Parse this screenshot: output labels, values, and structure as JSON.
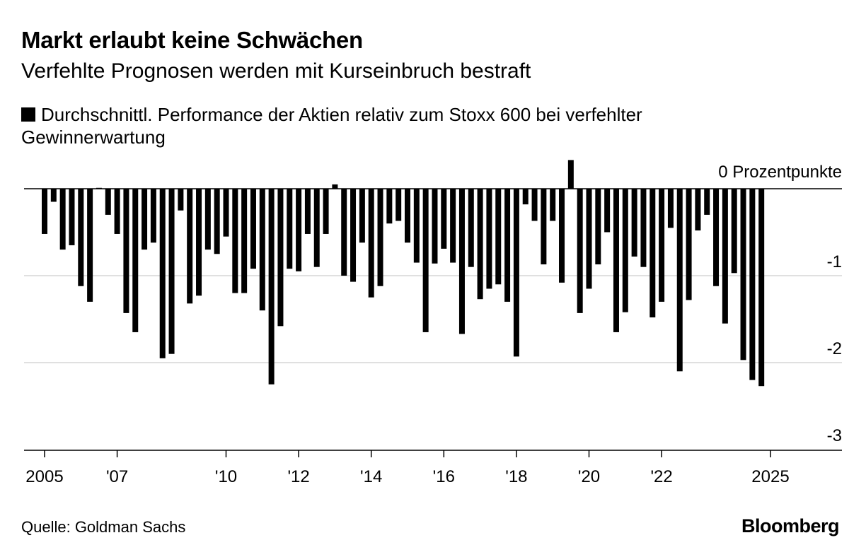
{
  "chart_data": {
    "type": "bar",
    "title": "Markt erlaubt keine Schwächen",
    "subtitle": "Verfehlte Prognosen werden mit Kurseinbruch bestraft",
    "legend": [
      {
        "label": "Durchschnittl. Performance der Aktien relativ zum Stoxx 600 bei verfehlter Gewinnerwartung",
        "color": "#000000"
      }
    ],
    "y_unit_label": "0 Prozentpunkte",
    "ylim": [
      -3,
      0.3
    ],
    "yticks": [
      {
        "value": 0,
        "label": ""
      },
      {
        "value": -1,
        "label": "-1"
      },
      {
        "value": -2,
        "label": "-2"
      },
      {
        "value": -3,
        "label": "-3"
      }
    ],
    "xlim": [
      2005,
      2026
    ],
    "xticks": [
      {
        "value": 2005,
        "label": "2005"
      },
      {
        "value": 2007,
        "label": "'07"
      },
      {
        "value": 2010,
        "label": "'10"
      },
      {
        "value": 2012,
        "label": "'12"
      },
      {
        "value": 2014,
        "label": "'14"
      },
      {
        "value": 2016,
        "label": "'16"
      },
      {
        "value": 2018,
        "label": "'18"
      },
      {
        "value": 2020,
        "label": "'20"
      },
      {
        "value": 2022,
        "label": "'22"
      },
      {
        "value": 2025,
        "label": "2025"
      }
    ],
    "x_start": 2005.0,
    "x_step": 0.25,
    "values": [
      -0.52,
      -0.15,
      -0.7,
      -0.65,
      -1.12,
      -1.3,
      0.01,
      -0.3,
      -0.52,
      -1.43,
      -1.65,
      -0.7,
      -0.62,
      -1.95,
      -1.9,
      -0.25,
      -1.32,
      -1.23,
      -0.7,
      -0.75,
      -0.55,
      -1.2,
      -1.2,
      -0.92,
      -1.4,
      -2.25,
      -1.58,
      -0.92,
      -0.95,
      -0.52,
      -0.9,
      -0.52,
      0.05,
      -1.0,
      -1.07,
      -0.62,
      -1.25,
      -1.12,
      -0.4,
      -0.37,
      -0.62,
      -0.85,
      -1.65,
      -0.86,
      -0.69,
      -0.85,
      -1.67,
      -0.9,
      -1.27,
      -1.15,
      -1.1,
      -1.3,
      -1.93,
      -0.18,
      -0.37,
      -0.87,
      -0.37,
      -1.08,
      0.33,
      -1.43,
      -1.15,
      -0.87,
      -0.5,
      -1.65,
      -1.42,
      -0.78,
      -0.9,
      -1.48,
      -1.3,
      -0.45,
      -2.1,
      -1.28,
      -0.48,
      -0.3,
      -1.12,
      -1.55,
      -0.97,
      -1.97,
      -2.2,
      -2.27
    ],
    "bar_color": "#000000",
    "grid": true
  },
  "footer": {
    "source": "Quelle: Goldman Sachs",
    "brand": "Bloomberg"
  }
}
